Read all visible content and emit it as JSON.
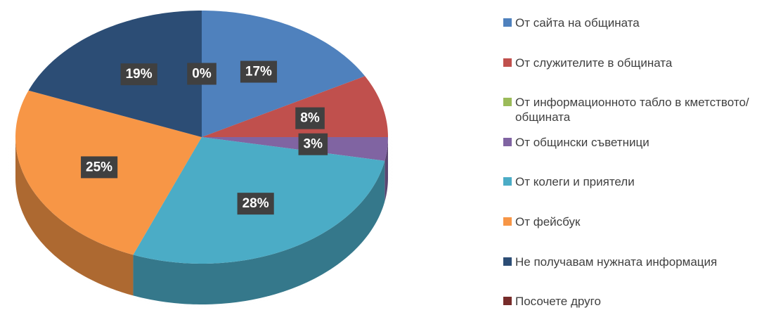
{
  "chart_data": {
    "type": "pie",
    "categories": [
      "От сайта на общината",
      "От служителите в общината",
      "От информационното табло в кметството/общината",
      "От общински съветници",
      "От колеги и приятели",
      "От фейсбук",
      "Не получавам нужната информация",
      "Посочете друго"
    ],
    "values": [
      17,
      8,
      0,
      3,
      28,
      25,
      19,
      0
    ],
    "value_labels": [
      "17%",
      "8%",
      null,
      "3%",
      "28%",
      "25%",
      "19%",
      "0%"
    ],
    "colors": [
      "#4f81bd",
      "#c0504d",
      "#9bbb59",
      "#8064a2",
      "#4bacc6",
      "#f79646",
      "#2c4d75",
      "#772c2a"
    ],
    "legend": "right"
  }
}
